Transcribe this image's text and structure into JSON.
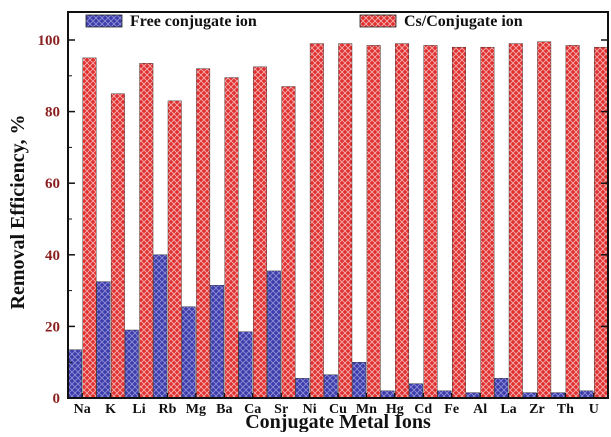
{
  "chart_data": {
    "type": "bar",
    "xlabel": "Conjugate Metal Ions",
    "ylabel": "Removal Efficiency, %",
    "ylim": [
      0,
      100
    ],
    "yticks": [
      0,
      20,
      40,
      60,
      80,
      100
    ],
    "legend_position": "top",
    "grid": false,
    "categories": [
      "Na",
      "K",
      "Li",
      "Rb",
      "Mg",
      "Ba",
      "Ca",
      "Sr",
      "Ni",
      "Cu",
      "Mn",
      "Hg",
      "Cd",
      "Fe",
      "Al",
      "La",
      "Zr",
      "Th",
      "U"
    ],
    "series": [
      {
        "name": "Free conjugate ion",
        "color": "#3b3ba8",
        "values": [
          13.5,
          32.5,
          19,
          40,
          25.5,
          31.5,
          18.5,
          35.5,
          5.5,
          6.5,
          10,
          2,
          4,
          2,
          1.5,
          5.5,
          1.5,
          1.5,
          2
        ]
      },
      {
        "name": "Cs/Conjugate ion",
        "color": "#d42a2a",
        "values": [
          95,
          85,
          93.5,
          83,
          92,
          89.5,
          92.5,
          87,
          99,
          99,
          98.5,
          99,
          98.5,
          98,
          98,
          99,
          99.5,
          98.5,
          98
        ]
      }
    ]
  }
}
